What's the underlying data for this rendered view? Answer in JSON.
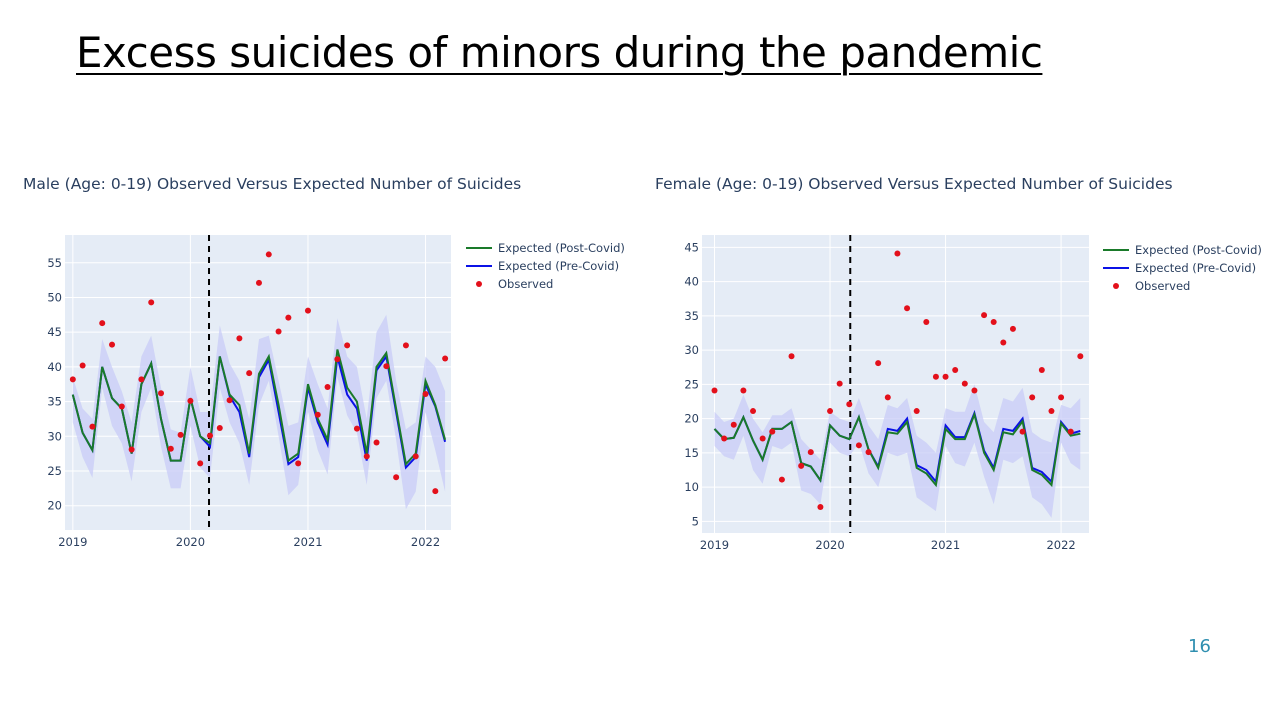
{
  "slide": {
    "title": "Excess suicides of minors during the pandemic",
    "page_number": "16"
  },
  "colors": {
    "plot_bg": "#e5ecf6",
    "grid": "#ffffff",
    "band": "#c8ccf7",
    "post_covid": "#1a7a2a",
    "pre_covid": "#0b12e6",
    "observed": "#e3101b",
    "tick_text": "#2a3f5f"
  },
  "chart_data": [
    {
      "type": "line",
      "title": "Male (Age: 0-19) Observed Versus Expected Number of Suicides",
      "x_ticks": [
        "2019",
        "2020",
        "2021",
        "2022"
      ],
      "x_start": "2019-01",
      "xlim_months": [
        -0.8,
        38.6
      ],
      "ylim": [
        16.5,
        59
      ],
      "y_ticks": [
        20,
        25,
        30,
        35,
        40,
        45,
        50,
        55
      ],
      "grid": true,
      "legend_position": "top-right",
      "covid_line_month": 13.9,
      "series": [
        {
          "name": "Expected (Post-Covid)",
          "values": [
            36,
            30.5,
            28,
            40,
            35.5,
            34,
            27.5,
            37.5,
            40.5,
            32.5,
            26.5,
            26.5,
            35.5,
            30,
            29,
            41.5,
            36,
            34.5,
            27.5,
            39,
            41.5,
            34.5,
            26.5,
            27.5,
            37.5,
            32.5,
            29.5,
            42.5,
            37,
            35,
            27.5,
            40,
            42,
            34,
            26,
            27.5,
            38,
            34.5,
            29.5
          ]
        },
        {
          "name": "Expected (Pre-Covid)",
          "values": [
            36,
            30.5,
            28,
            40,
            35.5,
            34,
            27.5,
            37.5,
            40.5,
            32.5,
            26.5,
            26.5,
            35.5,
            30,
            28.5,
            41.5,
            35.8,
            33.5,
            27,
            38.5,
            41,
            33.5,
            26,
            27,
            37,
            32,
            28.8,
            41.5,
            36,
            34,
            26.5,
            39.5,
            41.5,
            33.5,
            25.5,
            27,
            37.5,
            34.3,
            29.2
          ]
        },
        {
          "name": "Observed",
          "values": [
            38.2,
            40.2,
            31.4,
            46.3,
            43.2,
            34.3,
            28.1,
            38.2,
            49.3,
            36.2,
            28.2,
            30.2,
            35.1,
            26.1,
            30.1,
            31.2,
            35.2,
            44.1,
            39.1,
            52.1,
            56.2,
            45.1,
            47.1,
            26.1,
            48.1,
            33.1,
            37.1,
            41.1,
            43.1,
            31.1,
            27.1,
            29.1,
            40.1,
            24.1,
            43.1,
            27.1,
            36.1,
            22.1,
            41.2
          ]
        }
      ],
      "band_upper": [
        38.5,
        34,
        32.5,
        44,
        40,
        36.5,
        32,
        41.5,
        44.5,
        37,
        31,
        30.5,
        40,
        33.5,
        33.5,
        46,
        40.5,
        38,
        32.5,
        44,
        44.5,
        38,
        31.5,
        32,
        41.5,
        37.5,
        34,
        47,
        41.5,
        40,
        32.5,
        45,
        47.5,
        38,
        31,
        32,
        41.5,
        40,
        36.5
      ],
      "band_lower": [
        32,
        27,
        24,
        37,
        31.5,
        29,
        23.5,
        33.5,
        37,
        28.5,
        22.5,
        22.5,
        31.5,
        25.5,
        24,
        37,
        32,
        29,
        23,
        34.5,
        38,
        30,
        21.5,
        23,
        33.5,
        28,
        24.5,
        38.5,
        33,
        30.5,
        23,
        35.5,
        38,
        29.5,
        19.5,
        22,
        33.5,
        28,
        22
      ]
    },
    {
      "type": "line",
      "title": "Female (Age: 0-19) Observed Versus Expected Number of Suicides",
      "x_ticks": [
        "2019",
        "2020",
        "2021",
        "2022"
      ],
      "x_start": "2019-01",
      "xlim_months": [
        -1.3,
        38.9
      ],
      "ylim": [
        3.3,
        46.8
      ],
      "y_ticks": [
        5,
        10,
        15,
        20,
        25,
        30,
        35,
        40,
        45
      ],
      "grid": true,
      "legend_position": "top-right",
      "covid_line_month": 14.1,
      "series": [
        {
          "name": "Expected (Post-Covid)",
          "values": [
            18.5,
            17,
            17.2,
            20.2,
            16.8,
            14,
            18.5,
            18.5,
            19.5,
            13.5,
            13,
            11,
            19,
            17.5,
            17,
            20.2,
            15.5,
            12.8,
            18,
            17.8,
            19.5,
            12.8,
            12,
            10.3,
            18.5,
            17,
            17,
            20.6,
            15,
            12.5,
            18,
            17.7,
            19.6,
            12.5,
            11.8,
            10.3,
            19.3,
            17.5,
            17.8
          ]
        },
        {
          "name": "Expected (Pre-Covid)",
          "values": [
            18.5,
            17,
            17.2,
            20.2,
            16.8,
            14,
            18.5,
            18.5,
            19.5,
            13.5,
            13,
            11,
            19,
            17.5,
            17,
            20.2,
            15.5,
            13,
            18.5,
            18.2,
            20,
            13.2,
            12.5,
            10.8,
            19,
            17.3,
            17.3,
            20.8,
            15.3,
            12.8,
            18.5,
            18.2,
            20,
            12.8,
            12.2,
            10.8,
            19.5,
            17.8,
            18.2
          ]
        },
        {
          "name": "Observed",
          "values": [
            24.1,
            17.1,
            19.1,
            24.1,
            21.1,
            17.1,
            18.1,
            11.1,
            29.1,
            13.1,
            15.1,
            7.1,
            21.1,
            25.1,
            22.1,
            16.1,
            15.1,
            28.1,
            23.1,
            44.1,
            36.1,
            21.1,
            34.1,
            26.1,
            26.1,
            27.1,
            25.1,
            24.1,
            35.1,
            34.1,
            31.1,
            33.1,
            18.1,
            23.1,
            27.1,
            21.1,
            23.1,
            18.1,
            29.1
          ]
        }
      ],
      "band_upper": [
        21,
        19.5,
        20,
        23.5,
        20,
        18,
        20.5,
        20.5,
        21.5,
        17,
        15.5,
        14,
        21,
        20,
        19.5,
        23,
        19,
        17,
        22,
        21.5,
        23,
        17.5,
        16.5,
        15,
        21.5,
        21,
        21,
        25,
        19.5,
        18,
        23,
        22.5,
        24.5,
        18,
        17,
        16.5,
        22,
        21.5,
        23
      ],
      "band_lower": [
        16,
        14.5,
        14,
        17.5,
        12.5,
        10.5,
        16,
        15.5,
        16.5,
        9.5,
        9,
        7.5,
        16.5,
        15,
        14.5,
        16.5,
        12,
        10,
        15,
        14.5,
        15,
        8.5,
        7.5,
        6.5,
        16,
        13.5,
        13,
        16.5,
        11.5,
        7.5,
        14,
        13.5,
        14.5,
        8.5,
        7.5,
        5.5,
        16.5,
        13.5,
        12.5
      ]
    }
  ]
}
